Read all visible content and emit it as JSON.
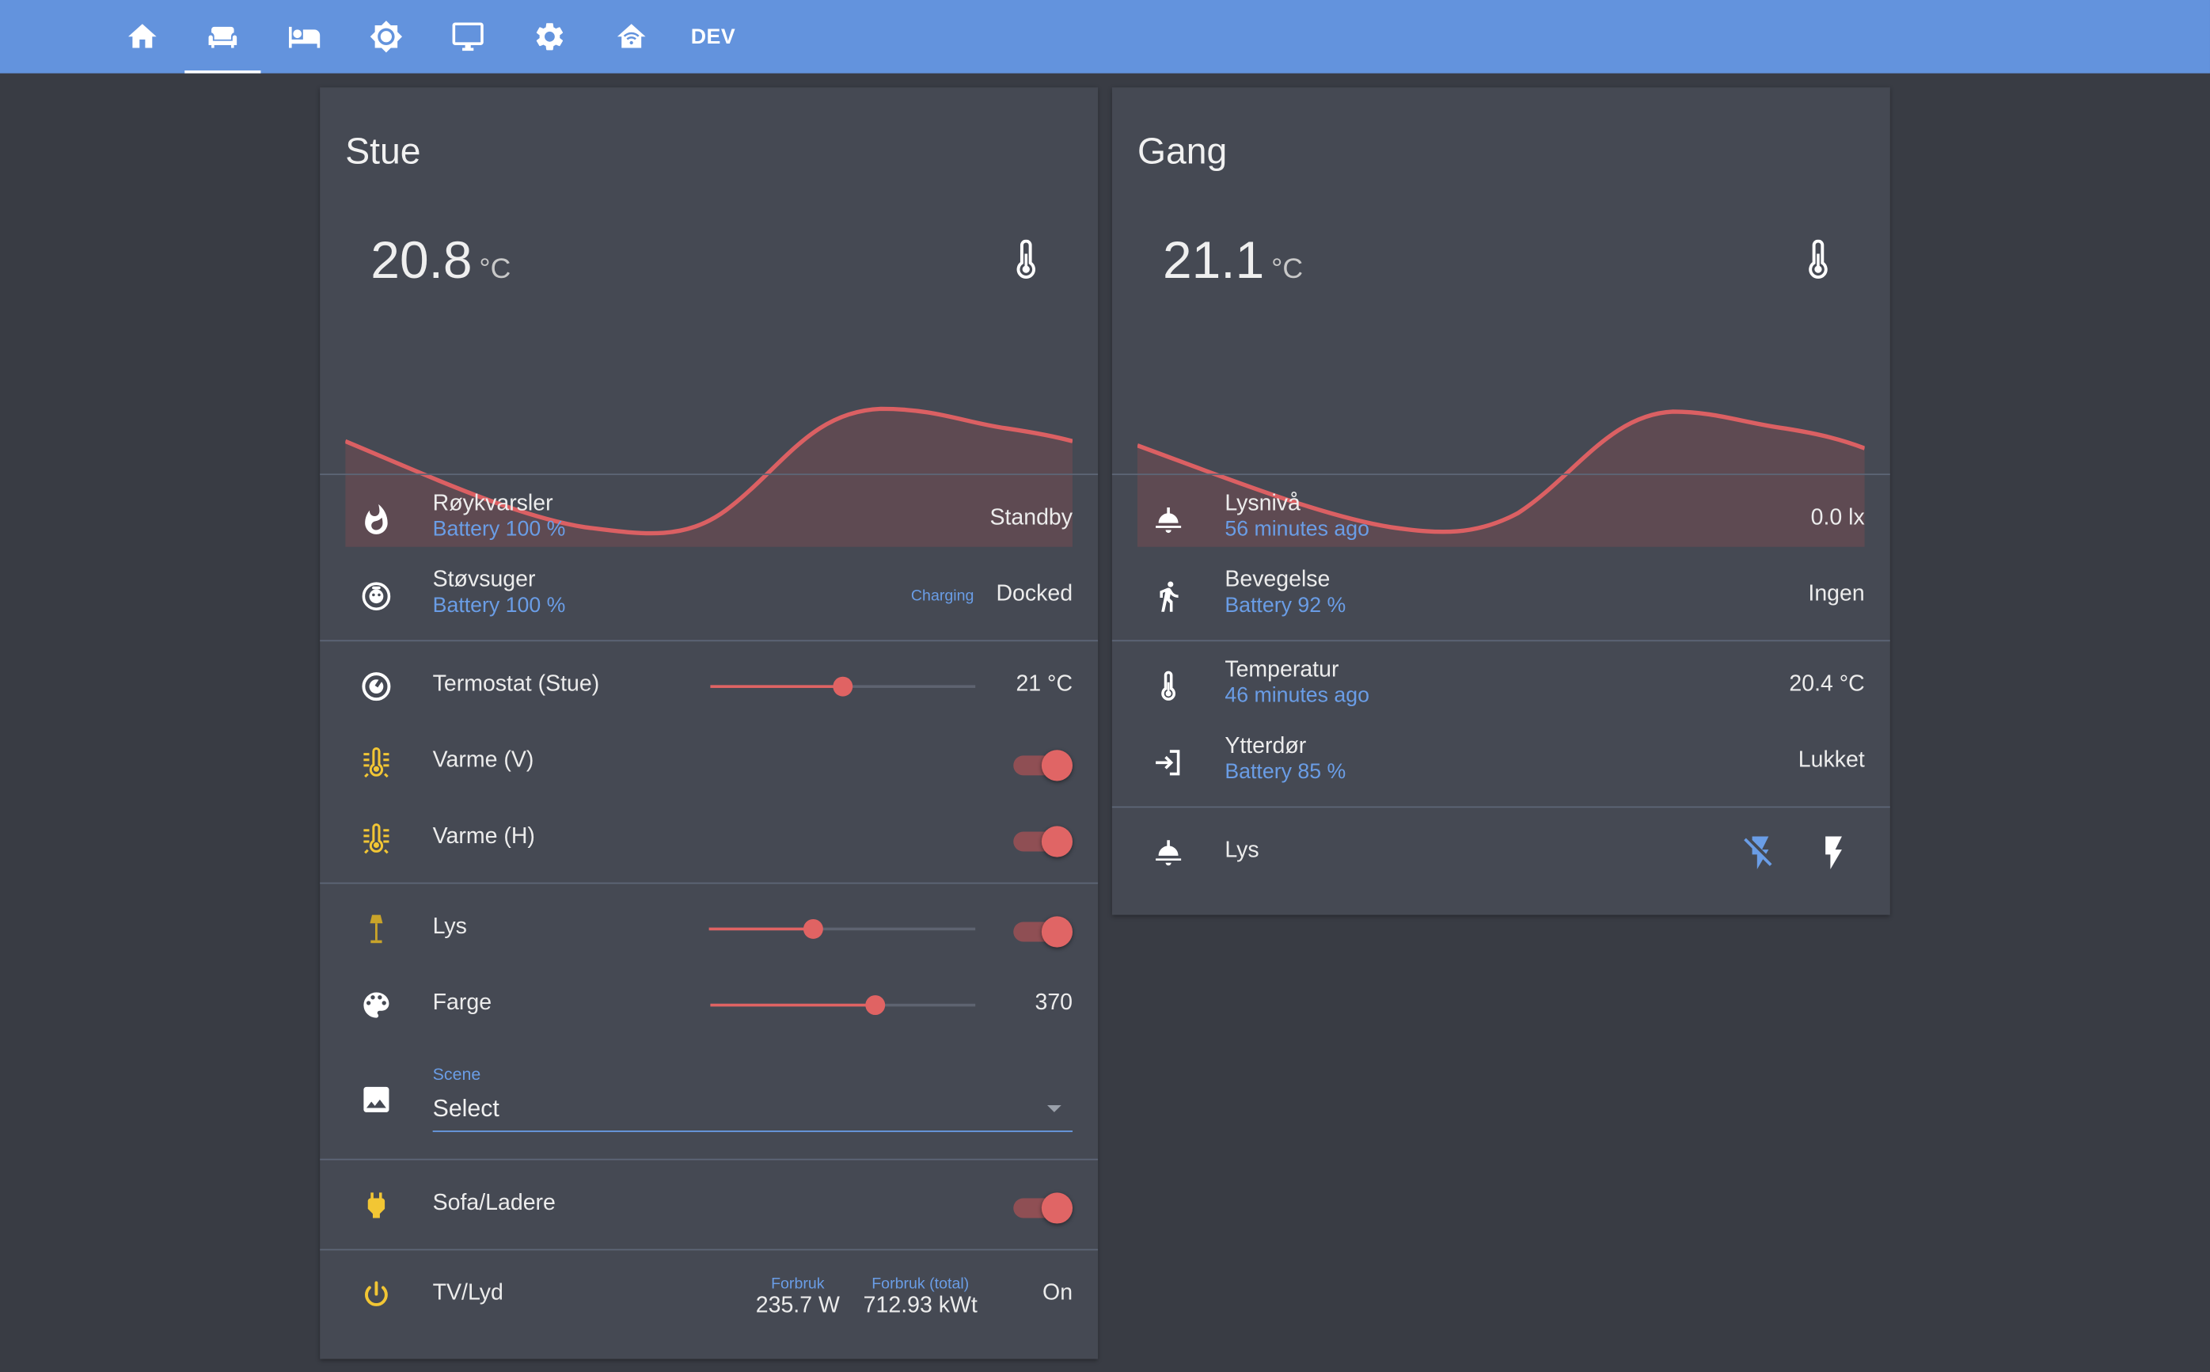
{
  "nav": {
    "tabs": [
      {
        "icon": "home-icon"
      },
      {
        "icon": "sofa-icon"
      },
      {
        "icon": "bed-icon"
      },
      {
        "icon": "brightness-icon"
      },
      {
        "icon": "monitor-icon"
      },
      {
        "icon": "gear-icon"
      },
      {
        "icon": "home-wifi-icon"
      }
    ],
    "dev_label": "DEV",
    "active_tab": 1
  },
  "colors": {
    "topbar": "#6393dd",
    "background": "#393c44",
    "card": "#454953",
    "accent": "#e06363",
    "secondary_text": "#6a9de6",
    "icon_yellow": "#f2c634"
  },
  "stue": {
    "title": "Stue",
    "temperature": "20.8",
    "unit": "°C",
    "rows": {
      "smoke": {
        "name": "Røykvarsler",
        "secondary": "Battery 100 %",
        "value": "Standby"
      },
      "vacuum": {
        "name": "Støvsuger",
        "secondary": "Battery 100 %",
        "status_label": "Charging",
        "value": "Docked"
      },
      "thermostat": {
        "name": "Termostat (Stue)",
        "value": "21 °C",
        "slider_level": 0.5
      },
      "heat_v": {
        "name": "Varme (V)",
        "state": "on"
      },
      "heat_h": {
        "name": "Varme (H)",
        "state": "on"
      },
      "light": {
        "name": "Lys",
        "slider_level": 0.39,
        "state": "on"
      },
      "color": {
        "name": "Farge",
        "value": "370",
        "slider_level": 0.62
      },
      "scene": {
        "label": "Scene",
        "value": "Select"
      },
      "sofa": {
        "name": "Sofa/Ladere",
        "state": "on"
      },
      "tv": {
        "name": "TV/Lyd",
        "power_label": "Forbruk",
        "power_value": "235.7 W",
        "total_label": "Forbruk (total)",
        "total_value": "712.93 kWt",
        "value": "On"
      }
    }
  },
  "gang": {
    "title": "Gang",
    "temperature": "21.1",
    "unit": "°C",
    "rows": {
      "lux": {
        "name": "Lysnivå",
        "secondary": "56 minutes ago",
        "value": "0.0 lx"
      },
      "motion": {
        "name": "Bevegelse",
        "secondary": "Battery 92 %",
        "value": "Ingen"
      },
      "temp": {
        "name": "Temperatur",
        "secondary": "46 minutes ago",
        "value": "20.4 °C"
      },
      "door": {
        "name": "Ytterdør",
        "secondary": "Battery 85 %",
        "value": "Lukket"
      },
      "light": {
        "name": "Lys"
      }
    }
  }
}
